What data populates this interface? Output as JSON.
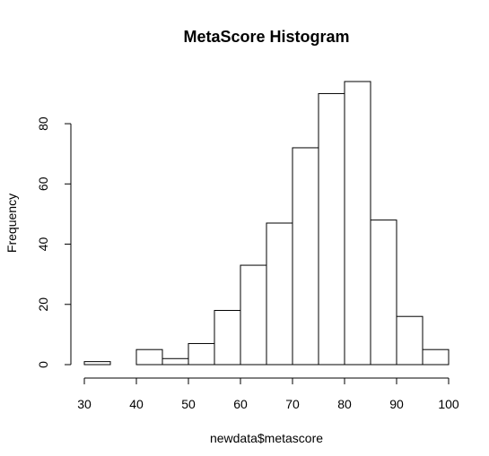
{
  "chart_data": {
    "type": "bar",
    "title": "MetaScore Histogram",
    "xlabel": "newdata$metascore",
    "ylabel": "Frequency",
    "bins": [
      {
        "from": 30,
        "to": 35,
        "count": 1
      },
      {
        "from": 35,
        "to": 40,
        "count": 0
      },
      {
        "from": 40,
        "to": 45,
        "count": 5
      },
      {
        "from": 45,
        "to": 50,
        "count": 2
      },
      {
        "from": 50,
        "to": 55,
        "count": 7
      },
      {
        "from": 55,
        "to": 60,
        "count": 18
      },
      {
        "from": 60,
        "to": 65,
        "count": 33
      },
      {
        "from": 65,
        "to": 70,
        "count": 47
      },
      {
        "from": 70,
        "to": 75,
        "count": 72
      },
      {
        "from": 75,
        "to": 80,
        "count": 90
      },
      {
        "from": 80,
        "to": 85,
        "count": 94
      },
      {
        "from": 85,
        "to": 90,
        "count": 48
      },
      {
        "from": 90,
        "to": 95,
        "count": 16
      },
      {
        "from": 95,
        "to": 100,
        "count": 5
      }
    ],
    "xticks": [
      30,
      40,
      50,
      60,
      70,
      80,
      90,
      100
    ],
    "yticks": [
      0,
      20,
      40,
      60,
      80
    ],
    "xlim": [
      30,
      100
    ],
    "ylim": [
      0,
      94
    ],
    "grid": false
  }
}
